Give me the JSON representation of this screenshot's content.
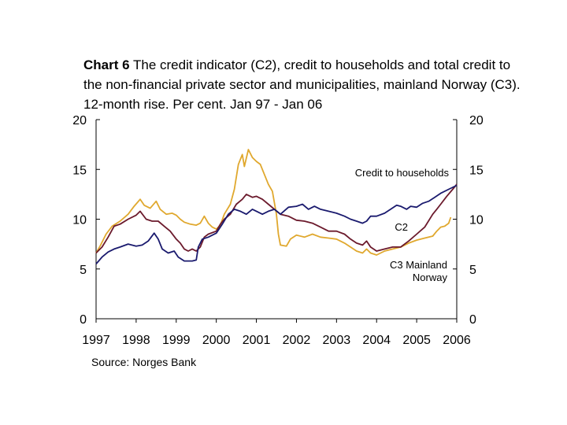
{
  "title_bold": "Chart 6",
  "title_rest": "The credit indicator (C2), credit to households and total credit to the non-financial private sector and municipalities, mainland Norway (C3). 12-month rise. Per cent. Jan 97 - Jan 06",
  "source": "Source: Norges Bank",
  "colors": {
    "households": "#e0a82e",
    "c2": "#6b1a2c",
    "c3": "#1a1a6e"
  },
  "chart_data": {
    "type": "line",
    "ylim": [
      0,
      20
    ],
    "yticks": [
      "0",
      "5",
      "10",
      "15",
      "20"
    ],
    "xlim": [
      1997,
      2006
    ],
    "xticks": [
      "1997",
      "1998",
      "1999",
      "2000",
      "2001",
      "2002",
      "2003",
      "2004",
      "2005",
      "2006"
    ],
    "grid": false,
    "series": [
      {
        "key": "households",
        "name": "Credit to households",
        "points": [
          [
            1997.0,
            6.6
          ],
          [
            1997.1,
            7.3
          ],
          [
            1997.25,
            8.5
          ],
          [
            1997.4,
            9.3
          ],
          [
            1997.6,
            9.8
          ],
          [
            1997.8,
            10.5
          ],
          [
            1997.95,
            11.3
          ],
          [
            1998.1,
            12.0
          ],
          [
            1998.2,
            11.4
          ],
          [
            1998.35,
            11.1
          ],
          [
            1998.5,
            11.8
          ],
          [
            1998.6,
            11.0
          ],
          [
            1998.75,
            10.5
          ],
          [
            1998.9,
            10.6
          ],
          [
            1999.0,
            10.4
          ],
          [
            1999.1,
            10.0
          ],
          [
            1999.2,
            9.7
          ],
          [
            1999.35,
            9.5
          ],
          [
            1999.5,
            9.4
          ],
          [
            1999.6,
            9.6
          ],
          [
            1999.7,
            10.3
          ],
          [
            1999.8,
            9.6
          ],
          [
            1999.9,
            9.2
          ],
          [
            2000.0,
            9.0
          ],
          [
            2000.1,
            9.4
          ],
          [
            2000.2,
            10.5
          ],
          [
            2000.35,
            11.5
          ],
          [
            2000.45,
            13.0
          ],
          [
            2000.55,
            15.5
          ],
          [
            2000.65,
            16.5
          ],
          [
            2000.7,
            15.3
          ],
          [
            2000.8,
            17.0
          ],
          [
            2000.9,
            16.2
          ],
          [
            2001.0,
            15.8
          ],
          [
            2001.1,
            15.5
          ],
          [
            2001.2,
            14.5
          ],
          [
            2001.3,
            13.5
          ],
          [
            2001.4,
            12.8
          ],
          [
            2001.5,
            10.5
          ],
          [
            2001.55,
            8.5
          ],
          [
            2001.6,
            7.4
          ],
          [
            2001.75,
            7.3
          ],
          [
            2001.85,
            8.0
          ],
          [
            2002.0,
            8.4
          ],
          [
            2002.2,
            8.2
          ],
          [
            2002.4,
            8.5
          ],
          [
            2002.6,
            8.2
          ],
          [
            2002.8,
            8.1
          ],
          [
            2003.0,
            8.0
          ],
          [
            2003.2,
            7.6
          ],
          [
            2003.35,
            7.2
          ],
          [
            2003.5,
            6.8
          ],
          [
            2003.65,
            6.6
          ],
          [
            2003.75,
            7.0
          ],
          [
            2003.85,
            6.6
          ],
          [
            2004.0,
            6.4
          ],
          [
            2004.2,
            6.8
          ],
          [
            2004.4,
            7.0
          ],
          [
            2004.6,
            7.2
          ],
          [
            2004.8,
            7.6
          ],
          [
            2005.0,
            7.9
          ],
          [
            2005.2,
            8.1
          ],
          [
            2005.4,
            8.3
          ],
          [
            2005.5,
            8.8
          ],
          [
            2005.6,
            9.2
          ],
          [
            2005.7,
            9.3
          ],
          [
            2005.8,
            9.6
          ],
          [
            2005.85,
            10.2
          ]
        ]
      },
      {
        "key": "c2",
        "name": "C2",
        "points": [
          [
            1997.0,
            6.6
          ],
          [
            1997.15,
            7.2
          ],
          [
            1997.3,
            8.2
          ],
          [
            1997.45,
            9.3
          ],
          [
            1997.6,
            9.5
          ],
          [
            1997.8,
            10.0
          ],
          [
            1998.0,
            10.4
          ],
          [
            1998.1,
            10.8
          ],
          [
            1998.25,
            10.0
          ],
          [
            1998.4,
            9.8
          ],
          [
            1998.55,
            9.8
          ],
          [
            1998.7,
            9.3
          ],
          [
            1998.85,
            8.8
          ],
          [
            1999.0,
            8.0
          ],
          [
            1999.1,
            7.6
          ],
          [
            1999.2,
            7.0
          ],
          [
            1999.3,
            6.8
          ],
          [
            1999.4,
            7.0
          ],
          [
            1999.5,
            6.8
          ],
          [
            1999.6,
            7.2
          ],
          [
            1999.7,
            8.2
          ],
          [
            1999.8,
            8.5
          ],
          [
            2000.0,
            8.8
          ],
          [
            2000.1,
            9.5
          ],
          [
            2000.2,
            10.0
          ],
          [
            2000.35,
            10.5
          ],
          [
            2000.5,
            11.5
          ],
          [
            2000.65,
            12.0
          ],
          [
            2000.75,
            12.5
          ],
          [
            2000.9,
            12.2
          ],
          [
            2001.0,
            12.3
          ],
          [
            2001.15,
            12.0
          ],
          [
            2001.3,
            11.5
          ],
          [
            2001.45,
            11.0
          ],
          [
            2001.6,
            10.5
          ],
          [
            2001.8,
            10.3
          ],
          [
            2002.0,
            9.9
          ],
          [
            2002.2,
            9.8
          ],
          [
            2002.4,
            9.6
          ],
          [
            2002.6,
            9.2
          ],
          [
            2002.8,
            8.8
          ],
          [
            2003.0,
            8.8
          ],
          [
            2003.2,
            8.5
          ],
          [
            2003.35,
            8.0
          ],
          [
            2003.5,
            7.6
          ],
          [
            2003.65,
            7.4
          ],
          [
            2003.75,
            7.8
          ],
          [
            2003.85,
            7.2
          ],
          [
            2004.0,
            6.8
          ],
          [
            2004.2,
            7.0
          ],
          [
            2004.4,
            7.2
          ],
          [
            2004.6,
            7.2
          ],
          [
            2004.8,
            7.8
          ],
          [
            2005.0,
            8.5
          ],
          [
            2005.2,
            9.2
          ],
          [
            2005.4,
            10.5
          ],
          [
            2005.5,
            11.0
          ],
          [
            2005.6,
            11.5
          ],
          [
            2005.75,
            12.3
          ],
          [
            2005.9,
            13.0
          ],
          [
            2006.0,
            13.5
          ]
        ]
      },
      {
        "key": "c3",
        "name": "C3 Mainland Norway",
        "points": [
          [
            1997.0,
            5.5
          ],
          [
            1997.15,
            6.2
          ],
          [
            1997.3,
            6.7
          ],
          [
            1997.45,
            7.0
          ],
          [
            1997.6,
            7.2
          ],
          [
            1997.8,
            7.5
          ],
          [
            1998.0,
            7.3
          ],
          [
            1998.15,
            7.4
          ],
          [
            1998.3,
            7.8
          ],
          [
            1998.45,
            8.6
          ],
          [
            1998.55,
            8.0
          ],
          [
            1998.65,
            7.0
          ],
          [
            1998.8,
            6.6
          ],
          [
            1998.95,
            6.8
          ],
          [
            1999.05,
            6.2
          ],
          [
            1999.2,
            5.8
          ],
          [
            1999.4,
            5.8
          ],
          [
            1999.5,
            5.9
          ],
          [
            1999.55,
            7.2
          ],
          [
            1999.65,
            8.0
          ],
          [
            1999.8,
            8.2
          ],
          [
            2000.0,
            8.6
          ],
          [
            2000.15,
            9.5
          ],
          [
            2000.3,
            10.5
          ],
          [
            2000.45,
            11.0
          ],
          [
            2000.6,
            10.8
          ],
          [
            2000.75,
            10.5
          ],
          [
            2000.9,
            11.0
          ],
          [
            2001.0,
            10.8
          ],
          [
            2001.15,
            10.5
          ],
          [
            2001.3,
            10.8
          ],
          [
            2001.45,
            11.0
          ],
          [
            2001.6,
            10.5
          ],
          [
            2001.8,
            11.2
          ],
          [
            2002.0,
            11.3
          ],
          [
            2002.15,
            11.5
          ],
          [
            2002.3,
            11.0
          ],
          [
            2002.45,
            11.3
          ],
          [
            2002.6,
            11.0
          ],
          [
            2002.8,
            10.8
          ],
          [
            2003.0,
            10.6
          ],
          [
            2003.2,
            10.3
          ],
          [
            2003.35,
            10.0
          ],
          [
            2003.5,
            9.8
          ],
          [
            2003.65,
            9.6
          ],
          [
            2003.75,
            9.8
          ],
          [
            2003.85,
            10.3
          ],
          [
            2004.0,
            10.3
          ],
          [
            2004.2,
            10.6
          ],
          [
            2004.35,
            11.0
          ],
          [
            2004.5,
            11.4
          ],
          [
            2004.6,
            11.3
          ],
          [
            2004.75,
            11.0
          ],
          [
            2004.85,
            11.3
          ],
          [
            2005.0,
            11.2
          ],
          [
            2005.15,
            11.6
          ],
          [
            2005.3,
            11.8
          ],
          [
            2005.45,
            12.2
          ],
          [
            2005.6,
            12.6
          ],
          [
            2005.8,
            13.0
          ],
          [
            2005.9,
            13.2
          ],
          [
            2006.0,
            13.4
          ]
        ]
      }
    ]
  }
}
